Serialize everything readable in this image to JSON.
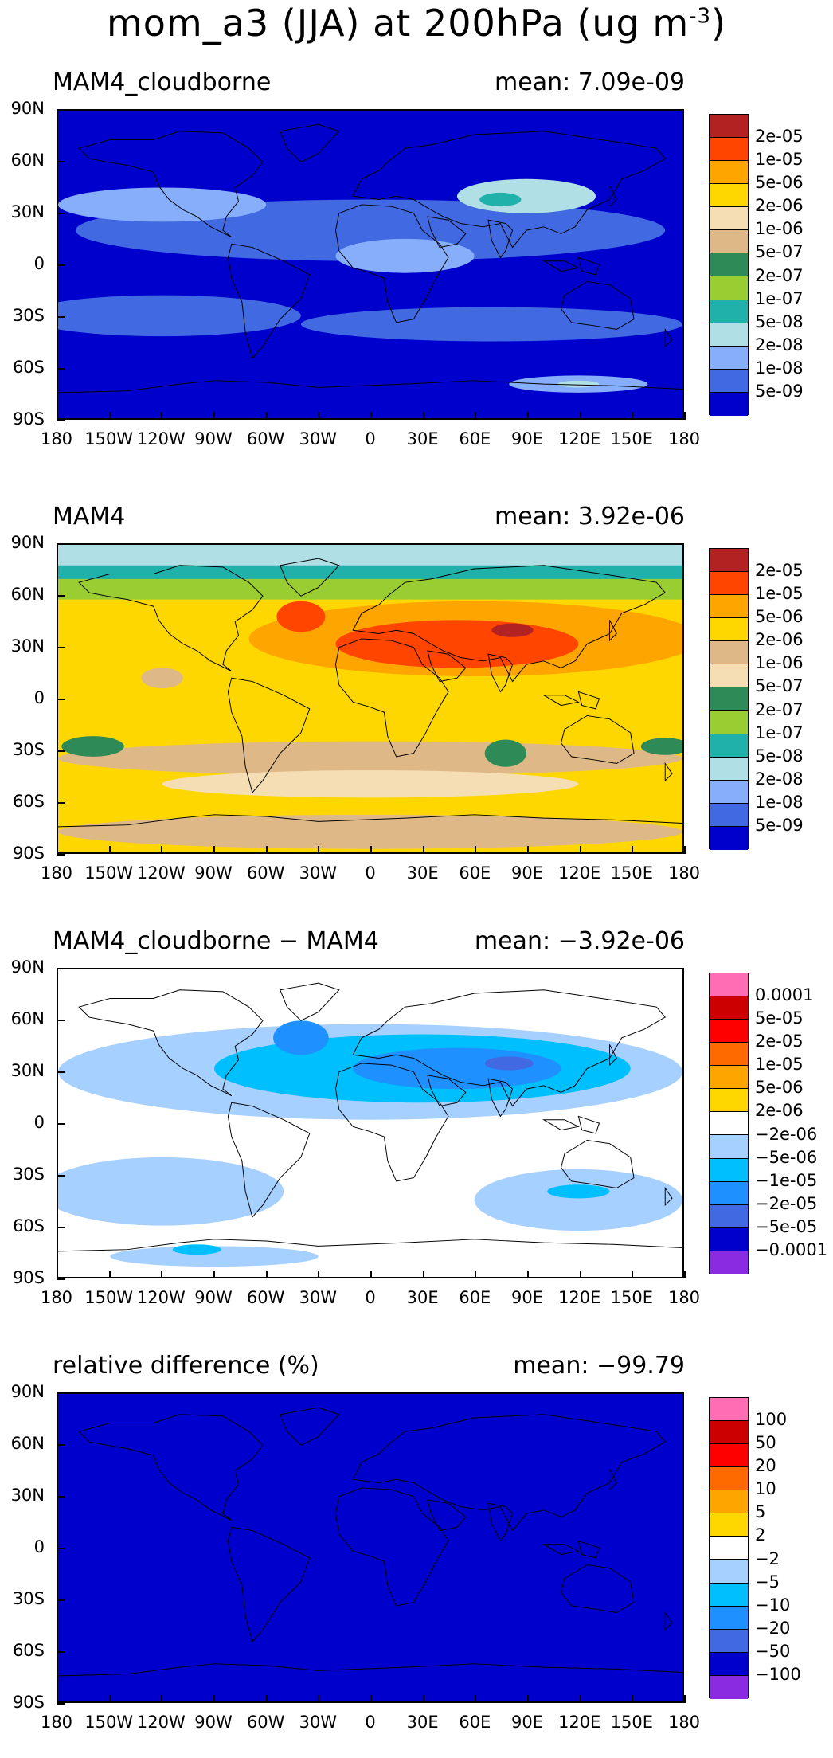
{
  "title_main": "mom_a3 (JJA) at 200hPa (ug m",
  "title_sup": "-3",
  "title_close": ")",
  "lat_labels": [
    "90N",
    "60N",
    "30N",
    "0",
    "30S",
    "60S",
    "90S"
  ],
  "lon_labels": [
    "180",
    "150W",
    "120W",
    "90W",
    "60W",
    "30W",
    "0",
    "30E",
    "60E",
    "90E",
    "120E",
    "150E",
    "180"
  ],
  "panels": [
    {
      "title": "MAM4_cloudborne",
      "mean": "mean: 7.09e-09",
      "colors": [
        "#b22222",
        "#ff4500",
        "#ffa500",
        "#ffd700",
        "#f5deb3",
        "#deb887",
        "#2e8b57",
        "#9acd32",
        "#20b2aa",
        "#b0e0e6",
        "#87aefa",
        "#4169e1",
        "#0000cd"
      ],
      "levels": [
        "2e-05",
        "1e-05",
        "5e-06",
        "2e-06",
        "1e-06",
        "5e-07",
        "2e-07",
        "1e-07",
        "5e-08",
        "2e-08",
        "1e-08",
        "5e-09"
      ]
    },
    {
      "title": "MAM4",
      "mean": "mean: 3.92e-06",
      "colors": [
        "#b22222",
        "#ff4500",
        "#ffa500",
        "#ffd700",
        "#deb887",
        "#f5deb3",
        "#2e8b57",
        "#9acd32",
        "#20b2aa",
        "#b0e0e6",
        "#87aefa",
        "#4169e1",
        "#0000cd"
      ],
      "levels": [
        "2e-05",
        "1e-05",
        "5e-06",
        "2e-06",
        "1e-06",
        "5e-07",
        "2e-07",
        "1e-07",
        "5e-08",
        "2e-08",
        "1e-08",
        "5e-09"
      ]
    },
    {
      "title": "MAM4_cloudborne − MAM4",
      "mean": "mean: −3.92e-06",
      "colors": [
        "#ff6eb4",
        "#cd0000",
        "#ff0000",
        "#ff6a00",
        "#ffa500",
        "#ffd700",
        "#ffffff",
        "#a6d0ff",
        "#00bfff",
        "#1e90ff",
        "#4169e1",
        "#0000cd",
        "#8a2be2"
      ],
      "levels": [
        "0.0001",
        "5e-05",
        "2e-05",
        "1e-05",
        "5e-06",
        "2e-06",
        "−2e-06",
        "−5e-06",
        "−1e-05",
        "−2e-05",
        "−5e-05",
        "−0.0001"
      ]
    },
    {
      "title": "relative difference (%)",
      "mean": "mean: −99.79",
      "colors": [
        "#ff6eb4",
        "#cd0000",
        "#ff0000",
        "#ff6a00",
        "#ffa500",
        "#ffd700",
        "#ffffff",
        "#a6d0ff",
        "#00bfff",
        "#1e90ff",
        "#4169e1",
        "#0000cd",
        "#8a2be2"
      ],
      "levels": [
        "100",
        "50",
        "20",
        "10",
        "5",
        "2",
        "−2",
        "−5",
        "−10",
        "−20",
        "−50",
        "−100"
      ]
    }
  ]
}
